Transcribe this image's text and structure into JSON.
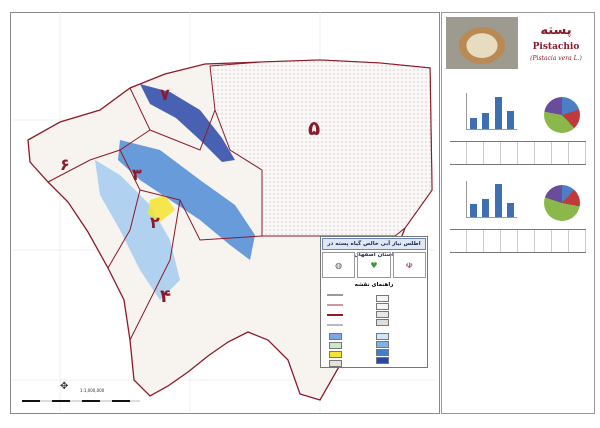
{
  "atlas_title": "اطلس نیاز آبی خالص گیاه پسته در استان اصفهان",
  "legend_heading": "راهنمای نقشه",
  "crop": {
    "name_fa": "پسته",
    "name_en": "Pistachio",
    "scientific": "(Pistacia vera L.)"
  },
  "zones": [
    "۵",
    "۷",
    "۶",
    "۳",
    "۲",
    "۴"
  ],
  "scale": "1:1,000,000",
  "colors": {
    "zone_boundary": "#8b1a2a",
    "water_need_dark": "#1a2f8f",
    "water_need_mid": "#3f7fd0",
    "water_need_light": "#a9cdef",
    "pistachio_area": "#f3e43a"
  },
  "icons": [
    "north-arrow-icon",
    "emblem-icon",
    "leaf-logo-icon",
    "globe-logo-icon"
  ]
}
